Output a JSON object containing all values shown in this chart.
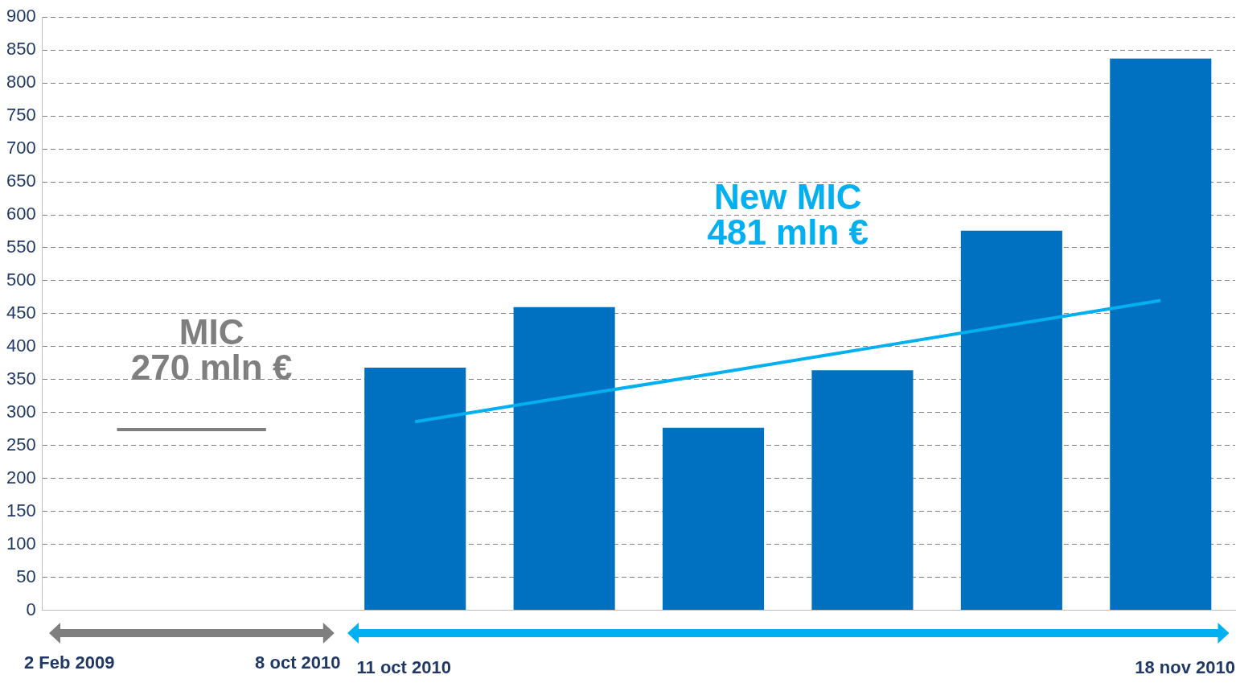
{
  "chart_data": {
    "type": "bar",
    "categories": [
      null,
      null,
      null,
      null,
      null,
      null,
      null,
      null
    ],
    "series": [
      {
        "color": "#0070c0",
        "values": [
          null,
          null,
          368,
          460,
          277,
          364,
          576,
          837
        ]
      },
      {
        "type": "line",
        "color": "#7f7f7f",
        "values": [
          274,
          274,
          null,
          null,
          null,
          null,
          null,
          null
        ]
      },
      {
        "type": "line",
        "color": "#00b0f0",
        "values": [
          null,
          null,
          286,
          323,
          359,
          396,
          433,
          470
        ]
      }
    ],
    "ylim": [
      0,
      900
    ],
    "yticks": [
      0,
      50,
      100,
      150,
      200,
      250,
      300,
      350,
      400,
      450,
      500,
      550,
      600,
      650,
      700,
      750,
      800,
      850,
      900
    ],
    "grid": "y",
    "legend": false,
    "marker": "none",
    "annotations": [
      "MIC\n270 mln €",
      "New MIC\n481 mln €",
      "2 Feb 2009",
      "8 oct 2010",
      "11 oct 2010",
      "18 nov 2010"
    ]
  }
}
